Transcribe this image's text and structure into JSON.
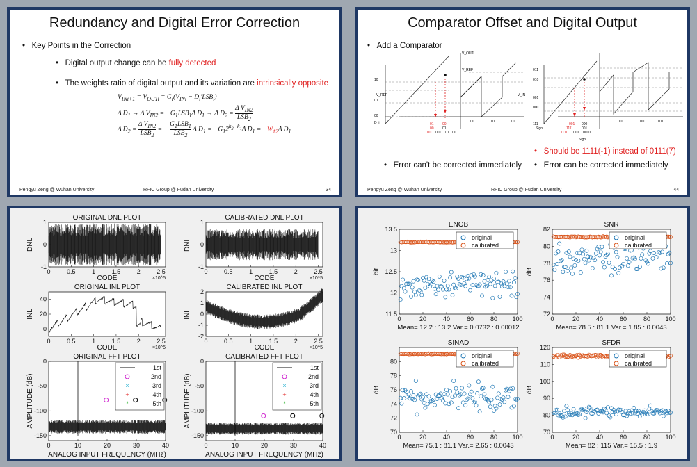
{
  "slide1": {
    "title": "Redundancy and Digital Error Correction",
    "bullet_main": "Key Points in the Correction",
    "sub1_prefix": "Digital output change can be ",
    "sub1_red": "fully detected",
    "sub2_prefix": "The weights ratio of digital output and its variation are ",
    "sub2_red": "intrinsically opposite",
    "eq1": "V_INi+1 = V_OUTi = G_i(V_INi − D_i'LSB_i)",
    "eq2": "Δ D_1 → Δ V_IN2 = −G_1LSB_1Δ D_1 → Δ D_2 = Δ V_IN2 / LSB_2",
    "eq3_a": "Δ D_2 = Δ V_IN2 / LSB_2 = − G_1LSB_1 / LSB_2 Δ D_1 = −G_1 2^(k2−k1) Δ D_1 = ",
    "eq3_red": "−W_12",
    "eq3_b": " Δ D_1",
    "footer_left": "Pengyu Zeng @ Wuhan University",
    "footer_mid": "RFIC Group @ Fudan University",
    "page": "34"
  },
  "slide2": {
    "title": "Comparator Offset and Digital Output",
    "bullet_main": "Add a Comparator",
    "red_note": "Should be 1111(-1) instead of 0111(7)",
    "left_caption": "Error can't be corrected immediately",
    "right_caption": "Error can be corrected immediately",
    "footer_left": "Pengyu Zeng @ Wuhan University",
    "footer_mid": "RFIC Group @ Fudan University",
    "page": "44",
    "diag_left": {
      "vout": "V_OUTi",
      "vref": "V_REF",
      "vrefn": "−V_REF",
      "vin": "V_IN",
      "codes": [
        "10",
        "01",
        "00"
      ],
      "dlabel": "D_i",
      "row1": [
        "01",
        "00"
      ],
      "row2": [
        "00",
        "01"
      ],
      "row3": [
        "010",
        "001",
        "01",
        "00"
      ],
      "axis": [
        "00",
        "01",
        "10"
      ]
    },
    "diag_right": {
      "codes": [
        "011",
        "010",
        "001",
        "000",
        "111"
      ],
      "sign": "Sign",
      "row1": [
        "001",
        "000"
      ],
      "row2": [
        "1111",
        "001"
      ],
      "row3": [
        "1111",
        "000",
        "0010"
      ],
      "axis": [
        "001",
        "010",
        "011"
      ]
    }
  },
  "chart_data": [
    {
      "type": "line",
      "title": "ORIGINAL DNL PLOT",
      "xlabel": "CODE",
      "ylabel": "DNL",
      "xlim": [
        0,
        260000
      ],
      "ylim": [
        -1,
        1
      ],
      "x_exponent": "×10^5",
      "xticks": [
        "0",
        "0.5",
        "1",
        "1.5",
        "2",
        "2.5"
      ],
      "yticks": [
        "-1",
        "0",
        "1"
      ]
    },
    {
      "type": "line",
      "title": "CALIBRATED DNL PLOT",
      "xlabel": "CODE",
      "ylabel": "DNL",
      "xlim": [
        0,
        260000
      ],
      "ylim": [
        -1,
        1
      ],
      "x_exponent": "×10^5",
      "xticks": [
        "0",
        "0.5",
        "1",
        "1.5",
        "2",
        "2.5"
      ],
      "yticks": [
        "-1",
        "0",
        "1"
      ]
    },
    {
      "type": "line",
      "title": "ORIGINAL INL PLOT",
      "xlabel": "CODE",
      "ylabel": "INL",
      "xlim": [
        0,
        260000
      ],
      "ylim": [
        -10,
        50
      ],
      "x_exponent": "×10^5",
      "xticks": [
        "0",
        "0.5",
        "1",
        "1.5",
        "2",
        "2.5"
      ],
      "yticks": [
        "0",
        "20",
        "40"
      ]
    },
    {
      "type": "line",
      "title": "CALIBRATED INL PLOT",
      "xlabel": "CODE",
      "ylabel": "INL",
      "xlim": [
        0,
        260000
      ],
      "ylim": [
        -2,
        2
      ],
      "x_exponent": "×10^5",
      "xticks": [
        "0",
        "0.5",
        "1",
        "1.5",
        "2",
        "2.5"
      ],
      "yticks": [
        "-2",
        "-1",
        "0",
        "1",
        "2"
      ]
    },
    {
      "type": "line",
      "title": "ORIGINAL FFT PLOT",
      "xlabel": "ANALOG INPUT FREQUENCY (MHz)",
      "ylabel": "AMPLITUDE (dB)",
      "xlim": [
        0,
        40
      ],
      "ylim": [
        -160,
        0
      ],
      "xticks": [
        "0",
        "10",
        "20",
        "30",
        "40"
      ],
      "yticks": [
        "0",
        "-50",
        "-100",
        "-150"
      ],
      "legend": [
        "1st",
        "2nd",
        "3rd",
        "4th",
        "5th"
      ]
    },
    {
      "type": "line",
      "title": "CALIBRATED FFT PLOT",
      "xlabel": "ANALOG INPUT FREQUENCY (MHz)",
      "ylabel": "AMPLITUDE (dB)",
      "xlim": [
        0,
        40
      ],
      "ylim": [
        -160,
        0
      ],
      "xticks": [
        "0",
        "10",
        "20",
        "30",
        "40"
      ],
      "yticks": [
        "0",
        "-50",
        "-100",
        "-150"
      ],
      "legend": [
        "1st",
        "2nd",
        "3rd",
        "4th",
        "5th"
      ]
    },
    {
      "type": "scatter",
      "title": "ENOB",
      "ylabel": "bit",
      "xlim": [
        0,
        100
      ],
      "ylim": [
        11.5,
        13.5
      ],
      "xticks": [
        "0",
        "20",
        "40",
        "60",
        "80",
        "100"
      ],
      "yticks": [
        "11.5",
        "12",
        "12.5",
        "13",
        "13.5"
      ],
      "legend": [
        "original",
        "calibrated"
      ],
      "stats": "Mean= 12.2 : 13.2  Var.= 0.0732 : 0.00012",
      "series": [
        {
          "name": "original",
          "mean": 12.2
        },
        {
          "name": "calibrated",
          "mean": 13.2
        }
      ]
    },
    {
      "type": "scatter",
      "title": "SNR",
      "ylabel": "dB",
      "xlim": [
        0,
        100
      ],
      "ylim": [
        72,
        82
      ],
      "xticks": [
        "0",
        "20",
        "40",
        "60",
        "80",
        "100"
      ],
      "yticks": [
        "72",
        "74",
        "76",
        "78",
        "80",
        "82"
      ],
      "legend": [
        "original",
        "calibrated"
      ],
      "stats": "Mean= 78.5 : 81.1  Var.= 1.85 : 0.0043",
      "series": [
        {
          "name": "original",
          "mean": 78.5
        },
        {
          "name": "calibrated",
          "mean": 81.1
        }
      ]
    },
    {
      "type": "scatter",
      "title": "SINAD",
      "ylabel": "dB",
      "xlim": [
        0,
        100
      ],
      "ylim": [
        70,
        82
      ],
      "xticks": [
        "0",
        "20",
        "40",
        "60",
        "80",
        "100"
      ],
      "yticks": [
        "70",
        "72",
        "74",
        "76",
        "78",
        "80"
      ],
      "legend": [
        "original",
        "calibrated"
      ],
      "stats": "Mean= 75.1 : 81.1  Var.= 2.65 : 0.0043",
      "series": [
        {
          "name": "original",
          "mean": 75.1
        },
        {
          "name": "calibrated",
          "mean": 81.1
        }
      ]
    },
    {
      "type": "scatter",
      "title": "SFDR",
      "ylabel": "dB",
      "xlim": [
        0,
        100
      ],
      "ylim": [
        70,
        120
      ],
      "xticks": [
        "0",
        "20",
        "40",
        "60",
        "80",
        "100"
      ],
      "yticks": [
        "70",
        "80",
        "90",
        "100",
        "110",
        "120"
      ],
      "legend": [
        "original",
        "calibrated"
      ],
      "stats": "Mean= 82 : 115  Var.= 15.5 : 1.9",
      "series": [
        {
          "name": "original",
          "mean": 82
        },
        {
          "name": "calibrated",
          "mean": 115
        }
      ]
    }
  ],
  "colors": {
    "border": "#1f3864",
    "red": "#e02020",
    "original": "#1f77b4",
    "calibrated": "#d95319",
    "plot_bg": "#f0f0f0"
  }
}
